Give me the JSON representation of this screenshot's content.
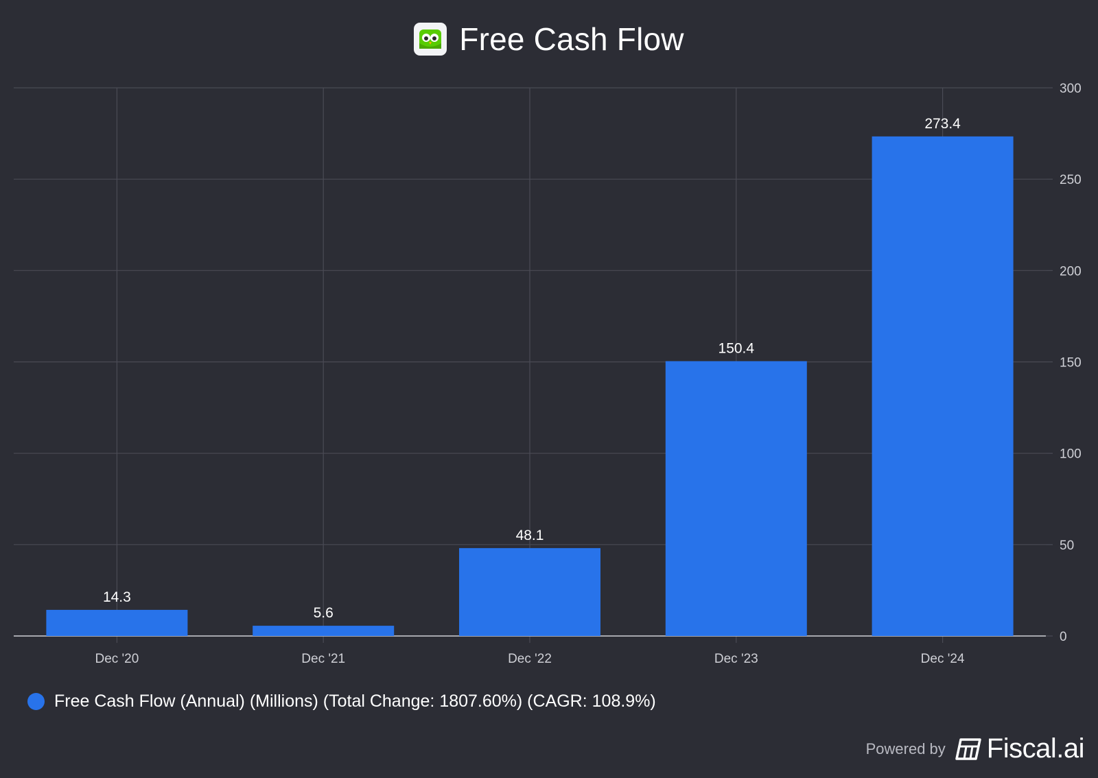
{
  "header": {
    "title": "Free Cash Flow",
    "logo_icon": "owl-logo-icon"
  },
  "chart_data": {
    "type": "bar",
    "title": "Free Cash Flow",
    "categories": [
      "Dec '20",
      "Dec '21",
      "Dec '22",
      "Dec '23",
      "Dec '24"
    ],
    "series": [
      {
        "name": "Free Cash Flow (Annual) (Millions) (Total Change: 1807.60%) (CAGR: 108.9%)",
        "values": [
          14.3,
          5.6,
          48.1,
          150.4,
          273.4
        ],
        "labels": [
          "14.3",
          "5.6",
          "48.1",
          "150.4",
          "273.4"
        ],
        "color": "#2873ea"
      }
    ],
    "ylim": [
      0,
      300
    ],
    "yticks": [
      0,
      50,
      100,
      150,
      200,
      250,
      300
    ],
    "y_axis_side": "right",
    "grid": true,
    "legend_position": "bottom-left"
  },
  "legend": {
    "label": "Free Cash Flow (Annual) (Millions) (Total Change: 1807.60%) (CAGR: 108.9%)"
  },
  "footer": {
    "powered_by": "Powered by",
    "brand": "Fiscal.ai"
  },
  "colors": {
    "background": "#2c2d35",
    "bar": "#2873ea",
    "grid": "#4a4b55"
  }
}
